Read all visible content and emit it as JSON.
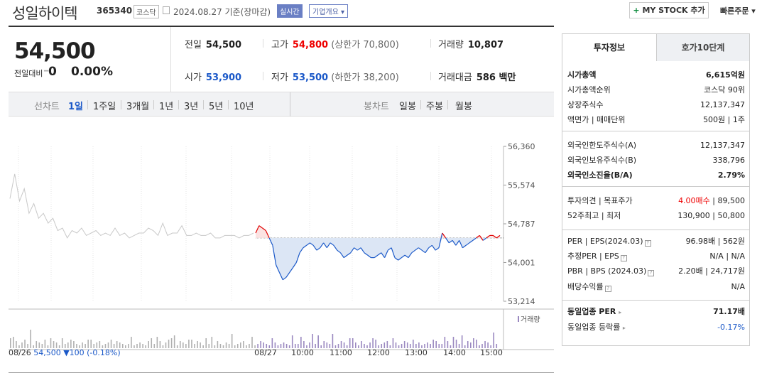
{
  "header": {
    "company": "성일하이텍",
    "code": "365340",
    "market": "코스닥",
    "date": "2024.08.27 기준(장마감)",
    "realtime": "실시간",
    "company_info": "기업개요 ▾",
    "mystock": "MY STOCK 추가",
    "mystock_plus": "+",
    "quick_order": "빠른주문 ▾"
  },
  "price": {
    "current": "54,500",
    "change_label": "전일대비",
    "change_symbol": "━",
    "change": "0",
    "rate": "0.00%"
  },
  "stats": {
    "prev_label": "전일",
    "prev": "54,500",
    "high_label": "고가",
    "high": "54,800",
    "upper_limit": "(상한가 70,800)",
    "volume_label": "거래량",
    "volume": "10,807",
    "open_label": "시가",
    "open": "53,900",
    "low_label": "저가",
    "low": "53,500",
    "lower_limit": "(하한가 38,200)",
    "amount_label": "거래대금",
    "amount": "586 백만"
  },
  "periods": {
    "label": "선차트",
    "items": [
      "1일",
      "1주일",
      "3개월",
      "1년",
      "3년",
      "5년",
      "10년"
    ],
    "candle_label": "봉차트",
    "candles": [
      "일봉",
      "주봉",
      "월봉"
    ]
  },
  "chart_data": {
    "type": "line",
    "title": "",
    "y_ticks": [
      "56,360",
      "55,574",
      "54,787",
      "54,001",
      "53,214"
    ],
    "ylim": [
      53214,
      56360
    ],
    "baseline": 54500,
    "x_ticks": [
      "08/26",
      "08/27",
      "10:00",
      "11:00",
      "12:00",
      "13:00",
      "14:00",
      "15:00"
    ],
    "volume_label": "거래량",
    "prev_day": [
      55300,
      55800,
      55250,
      55500,
      55000,
      55200,
      54900,
      55000,
      54800,
      54900,
      54650,
      54700,
      54500,
      54650,
      54600,
      54700,
      54550,
      54600,
      54650,
      54550,
      54600,
      54550,
      54700,
      54550,
      54600,
      54500,
      54550,
      54600,
      54600,
      54700,
      54650,
      54550,
      54800,
      54550,
      54600,
      54600,
      54750,
      54550,
      54550,
      54600,
      54550,
      54550,
      54600,
      54500,
      54500,
      54550,
      54550,
      54550,
      54500,
      54550,
      54550,
      54600
    ],
    "today": [
      54600,
      54750,
      54700,
      54650,
      54500,
      54350,
      53950,
      53800,
      53650,
      53700,
      53800,
      53900,
      54000,
      54200,
      54300,
      54350,
      54400,
      54350,
      54250,
      54300,
      54400,
      54300,
      54400,
      54350,
      54250,
      54200,
      54100,
      54150,
      54200,
      54300,
      54250,
      54300,
      54200,
      54150,
      54100,
      54100,
      54150,
      54200,
      54100,
      54250,
      54300,
      54100,
      54050,
      54100,
      54150,
      54100,
      54200,
      54250,
      54300,
      54250,
      54200,
      54300,
      54350,
      54250,
      54300,
      54600,
      54500,
      54400,
      54450,
      54350,
      54450,
      54300,
      54350,
      54400,
      54450,
      54500,
      54550,
      54450,
      54500,
      54550,
      54550,
      54500,
      54550
    ],
    "summary": {
      "date": "08/26",
      "price": "54,500",
      "change": "▼100",
      "rate": "(-0.18%)"
    }
  },
  "side": {
    "tab_invest": "투자정보",
    "tab_quote": "호가10단계",
    "rows1": [
      {
        "l": "시가총액",
        "r": "6,615억원",
        "bold": true
      },
      {
        "l": "시가총액순위",
        "r": "코스닥 90위"
      },
      {
        "l": "상장주식수",
        "r": "12,137,347"
      },
      {
        "l": "액면가 | 매매단위",
        "r": "500원 | 1주"
      }
    ],
    "rows2": [
      {
        "l": "외국인한도주식수(A)",
        "r": "12,137,347"
      },
      {
        "l": "외국인보유주식수(B)",
        "r": "338,796"
      },
      {
        "l": "외국인소진율(B/A)",
        "r": "2.79%",
        "bold": true
      }
    ],
    "opinion_label": "투자의견 | 목표주가",
    "opinion_red": "4.00매수",
    "opinion_rest": " | 89,500",
    "week52_label": "52주최고 | 최저",
    "week52": "130,900 | 50,800",
    "per_label": "PER | EPS(2024.03)",
    "per": "96.98배 | 562원",
    "est_label": "추정PER | EPS",
    "est": "N/A | N/A",
    "pbr_label": "PBR | BPS (2024.03)",
    "pbr": "2.20배 | 24,717원",
    "div_label": "배당수익률",
    "div": "N/A",
    "ind_per_label": "동일업종 PER",
    "ind_per": "71.17배",
    "ind_rate_label": "동일업종 등락률",
    "ind_rate": "-0.17%"
  },
  "colors": {
    "up": "#e00000",
    "down": "#1a58c8",
    "fill_down": "#dce6f5"
  }
}
